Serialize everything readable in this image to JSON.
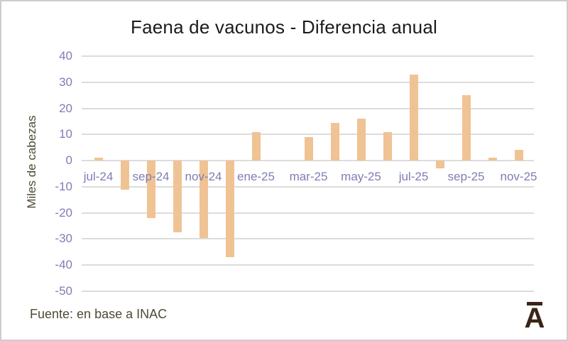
{
  "title": "Faena de vacunos - Diferencia anual",
  "y_axis_label": "Miles de cabezas",
  "source_note": "Fuente: en base a INAC",
  "logo_letter": "A",
  "colors": {
    "bar": "#f0c394",
    "gridline": "#dcdcdc",
    "axis_text": "#7f7db4",
    "title_text": "#1b1b1b",
    "olive_text": "#4e4a33",
    "logo": "#3b2417",
    "border": "#cdcdcd"
  },
  "chart_data": {
    "type": "bar",
    "title": "Faena de vacunos - Diferencia anual",
    "ylabel": "Miles de cabezas",
    "categories": [
      "jul-24",
      "ago-24",
      "sep-24",
      "oct-24",
      "nov-24",
      "dic-24",
      "ene-25",
      "feb-25",
      "mar-25",
      "abr-25",
      "may-25",
      "jun-25",
      "jul-25",
      "ago-25",
      "sep-25",
      "oct-25",
      "nov-25"
    ],
    "values": [
      1,
      -11,
      -22,
      -27.5,
      -29.5,
      -37,
      11,
      0,
      9,
      14.5,
      16,
      11,
      33,
      -3,
      25,
      1,
      4
    ],
    "x_tick_labels": [
      "jul-24",
      "sep-24",
      "nov-24",
      "ene-25",
      "mar-25",
      "may-25",
      "jul-25",
      "sep-25",
      "nov-25"
    ],
    "y_ticks": [
      40,
      30,
      20,
      10,
      0,
      -10,
      -20,
      -30,
      -40,
      -50
    ],
    "ylim": [
      -50,
      40
    ],
    "grid": true,
    "legend": false,
    "bar_color": "#f0c394"
  }
}
